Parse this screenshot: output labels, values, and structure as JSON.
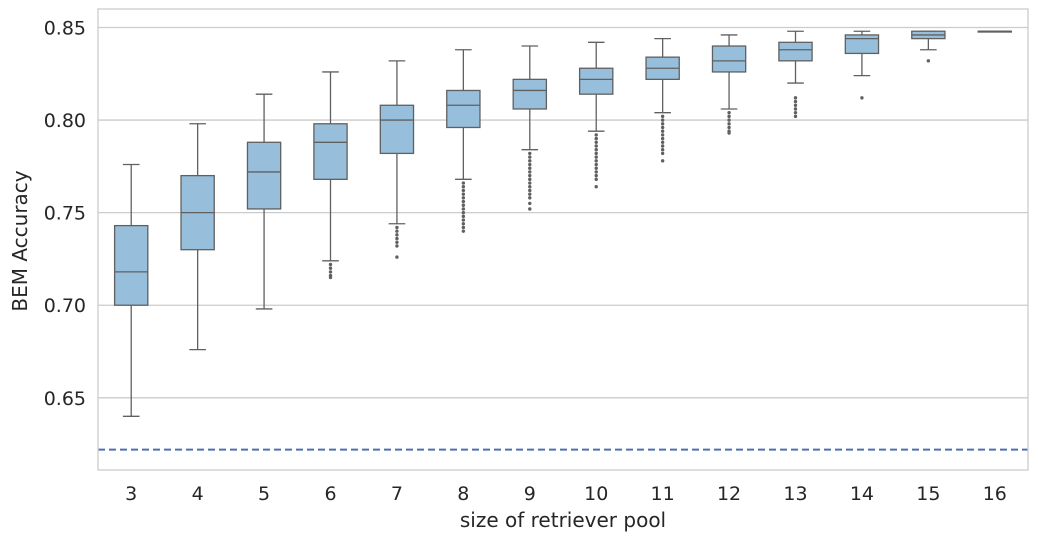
{
  "chart_data": {
    "type": "box",
    "xlabel": "size of retriever pool",
    "ylabel": "BEM Accuracy",
    "ylim": [
      0.611,
      0.86
    ],
    "yticks": [
      "0.65",
      "0.70",
      "0.75",
      "0.80",
      "0.85"
    ],
    "grid": "horizontal",
    "colors": {
      "box_fill": "#97bedb",
      "box_line": "#606060",
      "baseline": "#4c72b0",
      "grid": "#cccccc",
      "frame": "#cccccc"
    },
    "baseline": 0.622,
    "categories": [
      "3",
      "4",
      "5",
      "6",
      "7",
      "8",
      "9",
      "10",
      "11",
      "12",
      "13",
      "14",
      "15",
      "16"
    ],
    "boxes": [
      {
        "label": "3",
        "whislo": 0.64,
        "q1": 0.7,
        "med": 0.718,
        "q3": 0.743,
        "whishi": 0.776,
        "fliers": []
      },
      {
        "label": "4",
        "whislo": 0.676,
        "q1": 0.73,
        "med": 0.75,
        "q3": 0.77,
        "whishi": 0.798,
        "fliers": []
      },
      {
        "label": "5",
        "whislo": 0.698,
        "q1": 0.752,
        "med": 0.772,
        "q3": 0.788,
        "whishi": 0.814,
        "fliers": []
      },
      {
        "label": "6",
        "whislo": 0.724,
        "q1": 0.768,
        "med": 0.788,
        "q3": 0.798,
        "whishi": 0.826,
        "fliers": [
          0.722,
          0.72,
          0.718,
          0.716,
          0.715
        ]
      },
      {
        "label": "7",
        "whislo": 0.744,
        "q1": 0.782,
        "med": 0.8,
        "q3": 0.808,
        "whishi": 0.832,
        "fliers": [
          0.742,
          0.74,
          0.738,
          0.736,
          0.734,
          0.732,
          0.726
        ]
      },
      {
        "label": "8",
        "whislo": 0.768,
        "q1": 0.796,
        "med": 0.808,
        "q3": 0.816,
        "whishi": 0.838,
        "fliers": [
          0.766,
          0.764,
          0.762,
          0.76,
          0.758,
          0.756,
          0.754,
          0.752,
          0.75,
          0.748,
          0.746,
          0.744,
          0.742,
          0.74
        ]
      },
      {
        "label": "9",
        "whislo": 0.784,
        "q1": 0.806,
        "med": 0.816,
        "q3": 0.822,
        "whishi": 0.84,
        "fliers": [
          0.782,
          0.78,
          0.778,
          0.776,
          0.774,
          0.772,
          0.77,
          0.768,
          0.766,
          0.764,
          0.762,
          0.76,
          0.758,
          0.755,
          0.752
        ]
      },
      {
        "label": "10",
        "whislo": 0.794,
        "q1": 0.814,
        "med": 0.822,
        "q3": 0.828,
        "whishi": 0.842,
        "fliers": [
          0.792,
          0.79,
          0.788,
          0.786,
          0.784,
          0.782,
          0.78,
          0.778,
          0.776,
          0.774,
          0.772,
          0.77,
          0.768,
          0.764
        ]
      },
      {
        "label": "11",
        "whislo": 0.804,
        "q1": 0.822,
        "med": 0.828,
        "q3": 0.834,
        "whishi": 0.844,
        "fliers": [
          0.802,
          0.8,
          0.798,
          0.796,
          0.794,
          0.792,
          0.79,
          0.788,
          0.786,
          0.784,
          0.782,
          0.778
        ]
      },
      {
        "label": "12",
        "whislo": 0.806,
        "q1": 0.826,
        "med": 0.832,
        "q3": 0.84,
        "whishi": 0.846,
        "fliers": [
          0.804,
          0.802,
          0.8,
          0.798,
          0.796,
          0.794,
          0.793
        ]
      },
      {
        "label": "13",
        "whislo": 0.82,
        "q1": 0.832,
        "med": 0.838,
        "q3": 0.842,
        "whishi": 0.848,
        "fliers": [
          0.812,
          0.81,
          0.808,
          0.806,
          0.804,
          0.802
        ]
      },
      {
        "label": "14",
        "whislo": 0.824,
        "q1": 0.836,
        "med": 0.844,
        "q3": 0.846,
        "whishi": 0.848,
        "fliers": [
          0.812
        ]
      },
      {
        "label": "15",
        "whislo": 0.838,
        "q1": 0.844,
        "med": 0.846,
        "q3": 0.848,
        "whishi": 0.848,
        "fliers": [
          0.832
        ]
      },
      {
        "label": "16",
        "whislo": 0.848,
        "q1": 0.848,
        "med": 0.848,
        "q3": 0.848,
        "whishi": 0.848,
        "fliers": []
      }
    ]
  }
}
